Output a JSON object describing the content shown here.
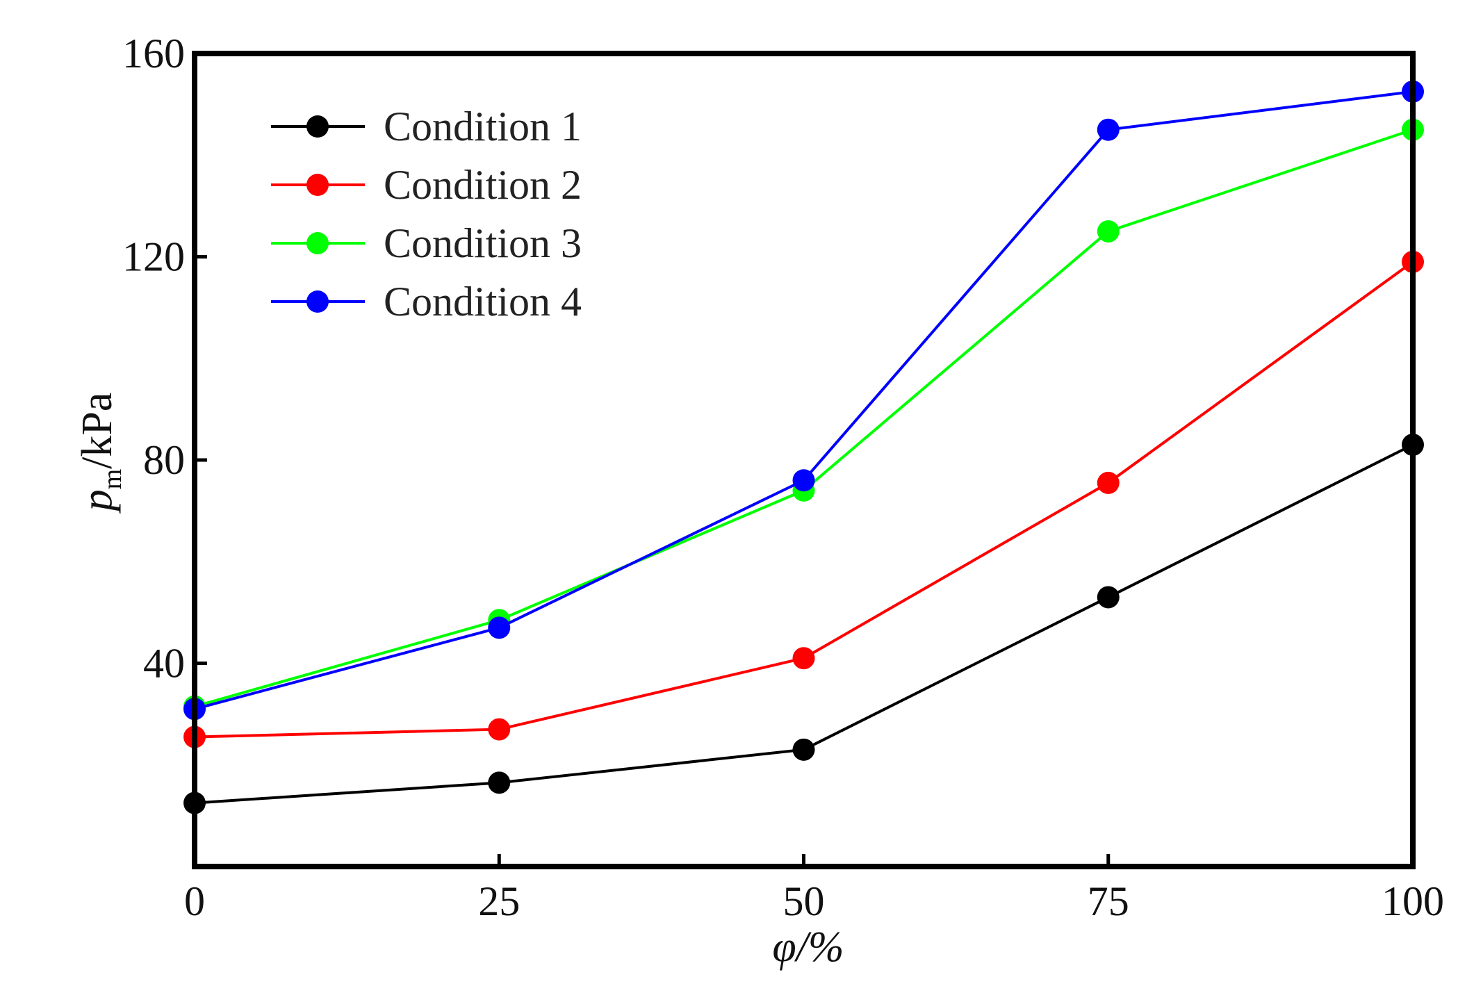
{
  "chart_data": {
    "type": "line",
    "title": "",
    "xlabel": "φ/%",
    "ylabel": "pm/kPa",
    "ylabel_parts": {
      "symbol": "p",
      "subscript": "m",
      "unit": "/kPa"
    },
    "x": [
      0,
      25,
      50,
      75,
      100
    ],
    "x_ticks": [
      0,
      25,
      50,
      75,
      100
    ],
    "y_ticks": [
      40,
      80,
      120,
      160
    ],
    "xlim": [
      0,
      100
    ],
    "ylim": [
      0,
      160
    ],
    "grid": false,
    "legend_position": "top-left",
    "series": [
      {
        "name": "Condition 1",
        "color": "#000000",
        "values": [
          12.5,
          16.5,
          23,
          53,
          83
        ]
      },
      {
        "name": "Condition 2",
        "color": "#ff0000",
        "values": [
          25.5,
          27,
          41,
          75.5,
          119
        ]
      },
      {
        "name": "Condition 3",
        "color": "#00ff00",
        "values": [
          31.5,
          48.5,
          74,
          125,
          145
        ]
      },
      {
        "name": "Condition 4",
        "color": "#0000ff",
        "values": [
          31,
          47,
          76,
          145,
          152.5
        ]
      }
    ]
  }
}
